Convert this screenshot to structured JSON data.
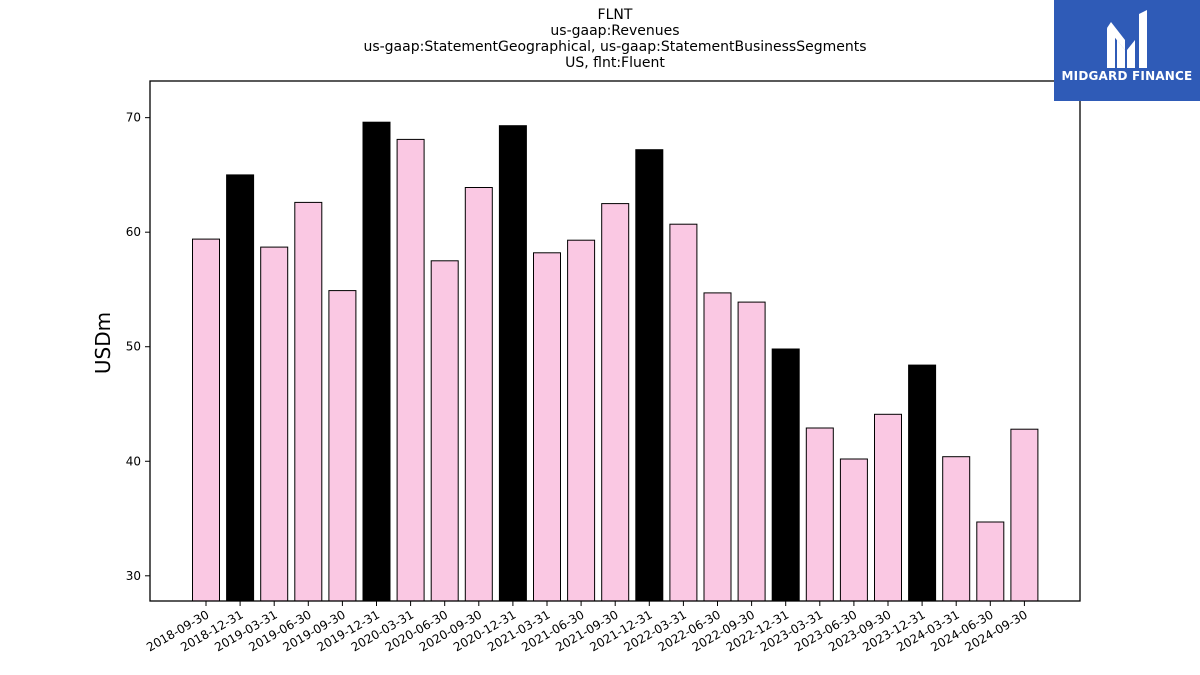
{
  "chart_data": {
    "type": "bar",
    "title_lines": [
      "FLNT",
      "us-gaap:Revenues",
      "us-gaap:StatementGeographical, us-gaap:StatementBusinessSegments",
      "US, flnt:Fluent"
    ],
    "xlabel": "",
    "ylabel": "USDm",
    "ylim": [
      27.8,
      73.2
    ],
    "yticks": [
      30,
      40,
      50,
      60,
      70
    ],
    "categories": [
      "2018-09-30",
      "2018-12-31",
      "2019-03-31",
      "2019-06-30",
      "2019-09-30",
      "2019-12-31",
      "2020-03-31",
      "2020-06-30",
      "2020-09-30",
      "2020-12-31",
      "2021-03-31",
      "2021-06-30",
      "2021-09-30",
      "2021-12-31",
      "2022-03-31",
      "2022-06-30",
      "2022-09-30",
      "2022-12-31",
      "2023-03-31",
      "2023-06-30",
      "2023-09-30",
      "2023-12-31",
      "2024-03-31",
      "2024-06-30",
      "2024-09-30"
    ],
    "values": [
      59.4,
      65.0,
      58.7,
      62.6,
      54.9,
      69.6,
      68.1,
      57.5,
      63.9,
      69.3,
      58.2,
      59.3,
      62.5,
      67.2,
      60.7,
      54.7,
      53.9,
      49.8,
      42.9,
      40.2,
      44.1,
      48.4,
      40.4,
      34.7,
      42.8
    ],
    "fiscal_year_end": [
      false,
      true,
      false,
      false,
      false,
      true,
      false,
      false,
      false,
      true,
      false,
      false,
      false,
      true,
      false,
      false,
      false,
      true,
      false,
      false,
      false,
      true,
      false,
      false,
      false
    ],
    "colors": {
      "quarter": "#fac8e3",
      "year_end": "#000000",
      "edge": "#000000"
    },
    "grid": false,
    "legend": "none"
  },
  "logo": {
    "text": "MIDGARD FINANCE",
    "background": "#2f5bb7"
  }
}
